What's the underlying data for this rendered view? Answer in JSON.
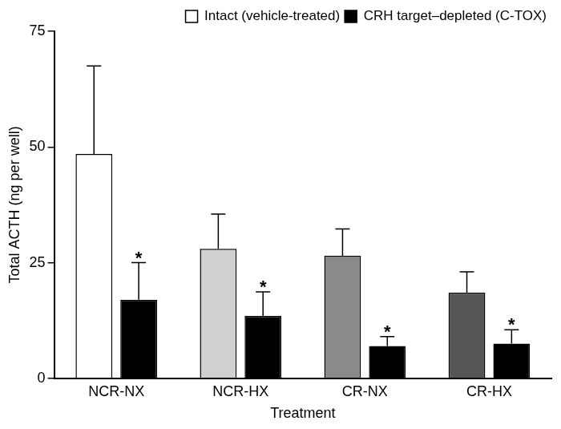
{
  "chart_data": {
    "type": "bar",
    "x_label": "Treatment",
    "y_label": "Total ACTH (ng per well)",
    "categories": [
      "NCR-NX",
      "NCR-HX",
      "CR-NX",
      "CR-HX"
    ],
    "series": [
      {
        "name": "Intact (vehicle-treated)",
        "colors": [
          "#ffffff",
          "#d0d0d0",
          "#8a8a8a",
          "#555555"
        ],
        "values": [
          48.5,
          28,
          26.5,
          18.5
        ],
        "errors": [
          19,
          7.5,
          5.8,
          4.5
        ]
      },
      {
        "name": "CRH target–depleted (C-TOX)",
        "color": "#000000",
        "values": [
          17,
          13.5,
          7,
          7.5
        ],
        "errors": [
          8,
          5.2,
          2,
          3
        ],
        "significance": [
          "*",
          "*",
          "*",
          "*"
        ]
      }
    ],
    "ylim": [
      0,
      75
    ],
    "yticks": [
      0,
      25,
      50,
      75
    ],
    "grid": false,
    "legend": "top-right"
  }
}
